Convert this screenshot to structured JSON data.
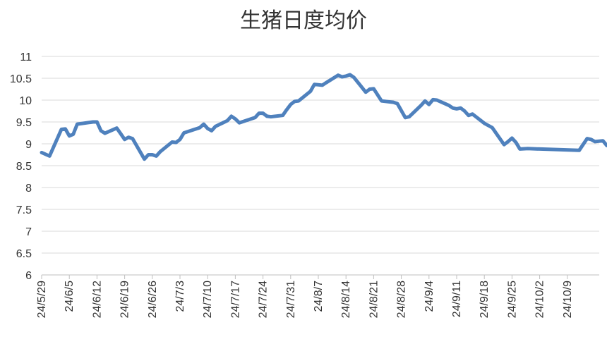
{
  "chart_data": {
    "type": "line",
    "title": "生猪日度均价",
    "xlabel": "",
    "ylabel": "",
    "ylim": [
      6,
      11
    ],
    "y_ticks": [
      "6",
      "6.5",
      "7",
      "7.5",
      "8",
      "8.5",
      "9",
      "9.5",
      "10",
      "10.5",
      "11"
    ],
    "x_tick_labels": [
      "24/5/29",
      "24/6/5",
      "24/6/12",
      "24/6/19",
      "24/6/26",
      "24/7/3",
      "24/7/10",
      "24/7/17",
      "24/7/24",
      "24/7/31",
      "24/8/7",
      "24/8/14",
      "24/8/21",
      "24/8/28",
      "24/9/4",
      "24/9/11",
      "24/9/18",
      "24/9/25",
      "24/10/2",
      "24/10/9"
    ],
    "grid": true,
    "legend": "none",
    "line_color": "#4F81BD",
    "series": [
      {
        "points": [
          [
            "2024-05-29",
            8.8
          ],
          [
            "2024-05-31",
            8.72
          ],
          [
            "2024-06-03",
            9.33
          ],
          [
            "2024-06-04",
            9.34
          ],
          [
            "2024-06-05",
            9.18
          ],
          [
            "2024-06-06",
            9.22
          ],
          [
            "2024-06-07",
            9.45
          ],
          [
            "2024-06-11",
            9.5
          ],
          [
            "2024-06-12",
            9.5
          ],
          [
            "2024-06-13",
            9.3
          ],
          [
            "2024-06-14",
            9.24
          ],
          [
            "2024-06-17",
            9.36
          ],
          [
            "2024-06-18",
            9.23
          ],
          [
            "2024-06-19",
            9.1
          ],
          [
            "2024-06-20",
            9.15
          ],
          [
            "2024-06-21",
            9.12
          ],
          [
            "2024-06-24",
            8.65
          ],
          [
            "2024-06-25",
            8.75
          ],
          [
            "2024-06-26",
            8.75
          ],
          [
            "2024-06-27",
            8.72
          ],
          [
            "2024-06-28",
            8.82
          ],
          [
            "2024-07-01",
            9.04
          ],
          [
            "2024-07-02",
            9.03
          ],
          [
            "2024-07-03",
            9.1
          ],
          [
            "2024-07-04",
            9.25
          ],
          [
            "2024-07-08",
            9.37
          ],
          [
            "2024-07-09",
            9.45
          ],
          [
            "2024-07-10",
            9.35
          ],
          [
            "2024-07-11",
            9.3
          ],
          [
            "2024-07-12",
            9.4
          ],
          [
            "2024-07-15",
            9.53
          ],
          [
            "2024-07-16",
            9.63
          ],
          [
            "2024-07-17",
            9.57
          ],
          [
            "2024-07-18",
            9.48
          ],
          [
            "2024-07-22",
            9.6
          ],
          [
            "2024-07-23",
            9.7
          ],
          [
            "2024-07-24",
            9.7
          ],
          [
            "2024-07-25",
            9.63
          ],
          [
            "2024-07-26",
            9.62
          ],
          [
            "2024-07-29",
            9.65
          ],
          [
            "2024-07-30",
            9.78
          ],
          [
            "2024-07-31",
            9.9
          ],
          [
            "2024-08-01",
            9.97
          ],
          [
            "2024-08-02",
            9.98
          ],
          [
            "2024-08-05",
            10.2
          ],
          [
            "2024-08-06",
            10.36
          ],
          [
            "2024-08-08",
            10.34
          ],
          [
            "2024-08-09",
            10.4
          ],
          [
            "2024-08-12",
            10.57
          ],
          [
            "2024-08-13",
            10.53
          ],
          [
            "2024-08-14",
            10.55
          ],
          [
            "2024-08-15",
            10.58
          ],
          [
            "2024-08-16",
            10.52
          ],
          [
            "2024-08-19",
            10.18
          ],
          [
            "2024-08-20",
            10.25
          ],
          [
            "2024-08-21",
            10.26
          ],
          [
            "2024-08-23",
            9.98
          ],
          [
            "2024-08-26",
            9.95
          ],
          [
            "2024-08-27",
            9.92
          ],
          [
            "2024-08-29",
            9.6
          ],
          [
            "2024-08-30",
            9.62
          ],
          [
            "2024-09-02",
            9.88
          ],
          [
            "2024-09-03",
            9.98
          ],
          [
            "2024-09-04",
            9.9
          ],
          [
            "2024-09-05",
            10.01
          ],
          [
            "2024-09-06",
            10.0
          ],
          [
            "2024-09-09",
            9.88
          ],
          [
            "2024-09-10",
            9.82
          ],
          [
            "2024-09-11",
            9.8
          ],
          [
            "2024-09-12",
            9.82
          ],
          [
            "2024-09-13",
            9.75
          ],
          [
            "2024-09-14",
            9.65
          ],
          [
            "2024-09-15",
            9.68
          ],
          [
            "2024-09-18",
            9.47
          ],
          [
            "2024-09-19",
            9.42
          ],
          [
            "2024-09-20",
            9.37
          ],
          [
            "2024-09-23",
            8.98
          ],
          [
            "2024-09-24",
            9.05
          ],
          [
            "2024-09-25",
            9.13
          ],
          [
            "2024-09-26",
            9.03
          ],
          [
            "2024-09-27",
            8.88
          ],
          [
            "2024-09-29",
            8.89
          ],
          [
            "2024-10-12",
            8.85
          ],
          [
            "2024-10-14",
            9.12
          ],
          [
            "2024-10-15",
            9.1
          ],
          [
            "2024-10-16",
            9.05
          ],
          [
            "2024-10-18",
            9.07
          ],
          [
            "2024-10-19",
            8.96
          ]
        ]
      }
    ]
  }
}
